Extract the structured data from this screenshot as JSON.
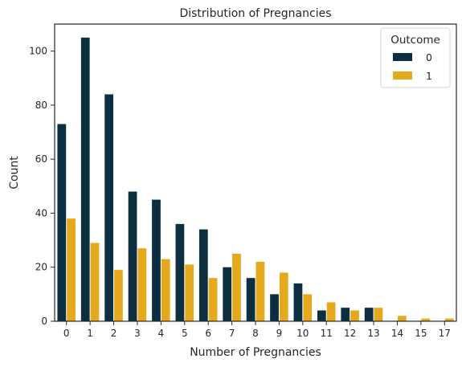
{
  "chart_data": {
    "type": "bar",
    "title": "Distribution of Pregnancies",
    "xlabel": "Number of Pregnancies",
    "ylabel": "Count",
    "categories": [
      "0",
      "1",
      "2",
      "3",
      "4",
      "5",
      "6",
      "7",
      "8",
      "9",
      "10",
      "11",
      "12",
      "13",
      "14",
      "15",
      "17"
    ],
    "ylim": [
      0,
      110
    ],
    "yticks": [
      0,
      20,
      40,
      60,
      80,
      100
    ],
    "grid": false,
    "legend": {
      "title": "Outcome",
      "placement": "top-right"
    },
    "series": [
      {
        "name": "0",
        "color": "#0b2f40",
        "values": [
          73,
          105,
          84,
          48,
          45,
          36,
          34,
          20,
          16,
          10,
          14,
          4,
          5,
          5,
          0,
          0,
          0
        ]
      },
      {
        "name": "1",
        "color": "#e5a91d",
        "values": [
          38,
          29,
          19,
          27,
          23,
          21,
          16,
          25,
          22,
          18,
          10,
          7,
          4,
          5,
          2,
          1,
          1
        ]
      }
    ]
  }
}
